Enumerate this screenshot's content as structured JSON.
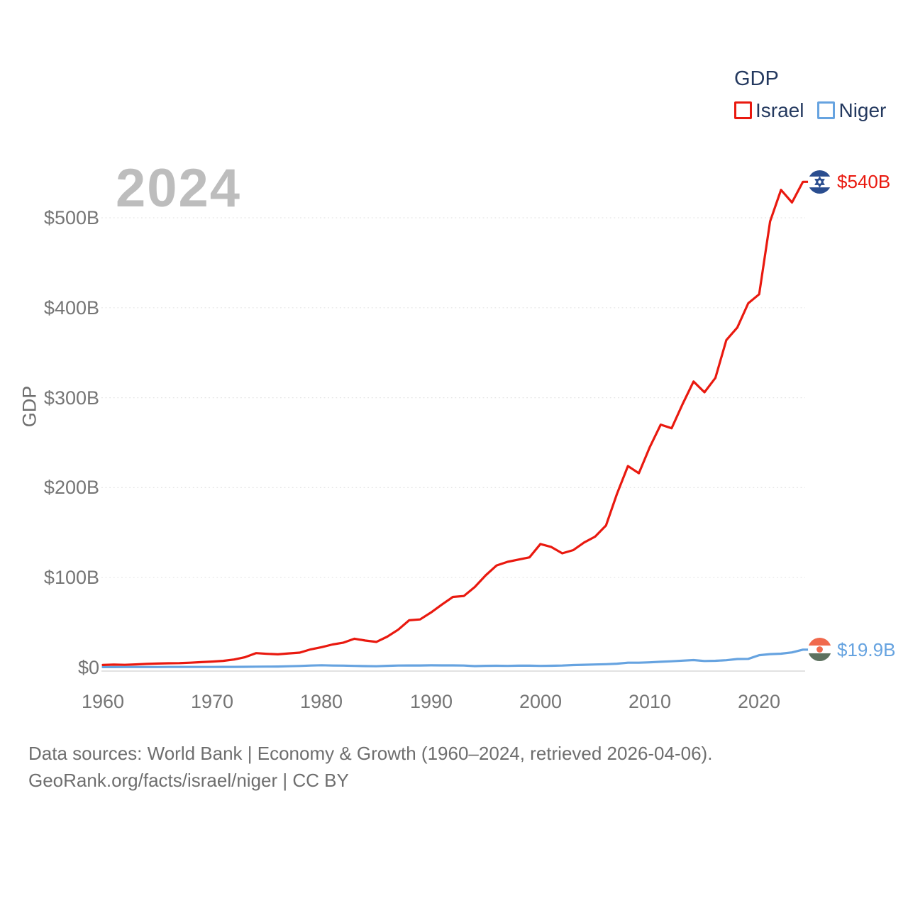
{
  "watermark": "2024",
  "legend": {
    "title": "GDP"
  },
  "footer": {
    "line1": "Data sources: World Bank | Economy & Growth (1960–2024, retrieved 2026-04-06).",
    "line2": "GeoRank.org/facts/israel/niger | CC BY"
  },
  "colors": {
    "israel_red": "#e9190f",
    "niger_blue": "#66a3e0",
    "legend_text_navy": "#24395f",
    "tick_gray": "#757575",
    "watermark_gray": "#bdbdbd",
    "footer_gray": "#6e6e6e",
    "gridline_gray": "#e5e5e5"
  },
  "icons": {
    "israel_flag": "israel-flag-circle-icon",
    "niger_flag": "niger-flag-circle-icon"
  },
  "chart_data": {
    "type": "line",
    "title": "GDP",
    "xlabel": "",
    "ylabel": "GDP",
    "grid": "horizontal dotted",
    "legend_position": "top-right",
    "xlim": [
      1960,
      2024
    ],
    "ylim": [
      0,
      560
    ],
    "x_tick_values": [
      1960,
      1970,
      1980,
      1990,
      2000,
      2010,
      2020
    ],
    "y_tick_values": [
      0,
      100,
      200,
      300,
      400,
      500
    ],
    "y_tick_labels": [
      "$0",
      "$100B",
      "$200B",
      "$300B",
      "$400B",
      "$500B"
    ],
    "x": [
      1960,
      1961,
      1962,
      1963,
      1964,
      1965,
      1966,
      1967,
      1968,
      1969,
      1970,
      1971,
      1972,
      1973,
      1974,
      1975,
      1976,
      1977,
      1978,
      1979,
      1980,
      1981,
      1982,
      1983,
      1984,
      1985,
      1986,
      1987,
      1988,
      1989,
      1990,
      1991,
      1992,
      1993,
      1994,
      1995,
      1996,
      1997,
      1998,
      1999,
      2000,
      2001,
      2002,
      2003,
      2004,
      2005,
      2006,
      2007,
      2008,
      2009,
      2010,
      2011,
      2012,
      2013,
      2014,
      2015,
      2016,
      2017,
      2018,
      2019,
      2020,
      2021,
      2022,
      2023,
      2024
    ],
    "series": [
      {
        "name": "Israel",
        "color": "#e9190f",
        "end_label": "$540B",
        "unit": "billion USD",
        "values": [
          2.8,
          3.2,
          3.0,
          3.5,
          4.0,
          4.4,
          4.7,
          4.9,
          5.4,
          6.0,
          6.6,
          7.4,
          8.9,
          11.5,
          16.0,
          15.2,
          14.7,
          15.7,
          16.6,
          20.2,
          22.6,
          25.6,
          27.7,
          32.0,
          30.0,
          28.5,
          34.3,
          42.0,
          52.5,
          53.5,
          61.2,
          70.0,
          78.5,
          79.5,
          89.5,
          102.5,
          113.5,
          117.5,
          120.0,
          122.5,
          137.3,
          134.0,
          127.0,
          130.5,
          139.0,
          145.5,
          158.0,
          193.0,
          224.0,
          216.0,
          245.0,
          270.0,
          266.0,
          293.0,
          318.0,
          306.0,
          322.0,
          364.0,
          378.0,
          405.0,
          415.0,
          496.0,
          531.0,
          517.0,
          540.0
        ]
      },
      {
        "name": "Niger",
        "color": "#66a3e0",
        "end_label": "$19.9B",
        "unit": "billion USD",
        "values": [
          0.45,
          0.49,
          0.52,
          0.54,
          0.56,
          0.59,
          0.62,
          0.63,
          0.62,
          0.61,
          0.65,
          0.68,
          0.72,
          0.79,
          0.94,
          1.04,
          1.13,
          1.4,
          1.75,
          2.18,
          2.51,
          2.23,
          2.1,
          1.84,
          1.58,
          1.43,
          1.89,
          2.23,
          2.32,
          2.29,
          2.48,
          2.33,
          2.37,
          2.24,
          1.56,
          1.88,
          1.98,
          1.85,
          2.08,
          2.02,
          1.8,
          1.94,
          2.17,
          2.73,
          3.05,
          3.41,
          3.69,
          4.29,
          5.4,
          5.4,
          5.72,
          6.41,
          6.94,
          7.68,
          8.28,
          7.24,
          7.53,
          8.12,
          9.46,
          9.66,
          13.74,
          14.92,
          15.34,
          16.82,
          19.9
        ]
      }
    ]
  }
}
